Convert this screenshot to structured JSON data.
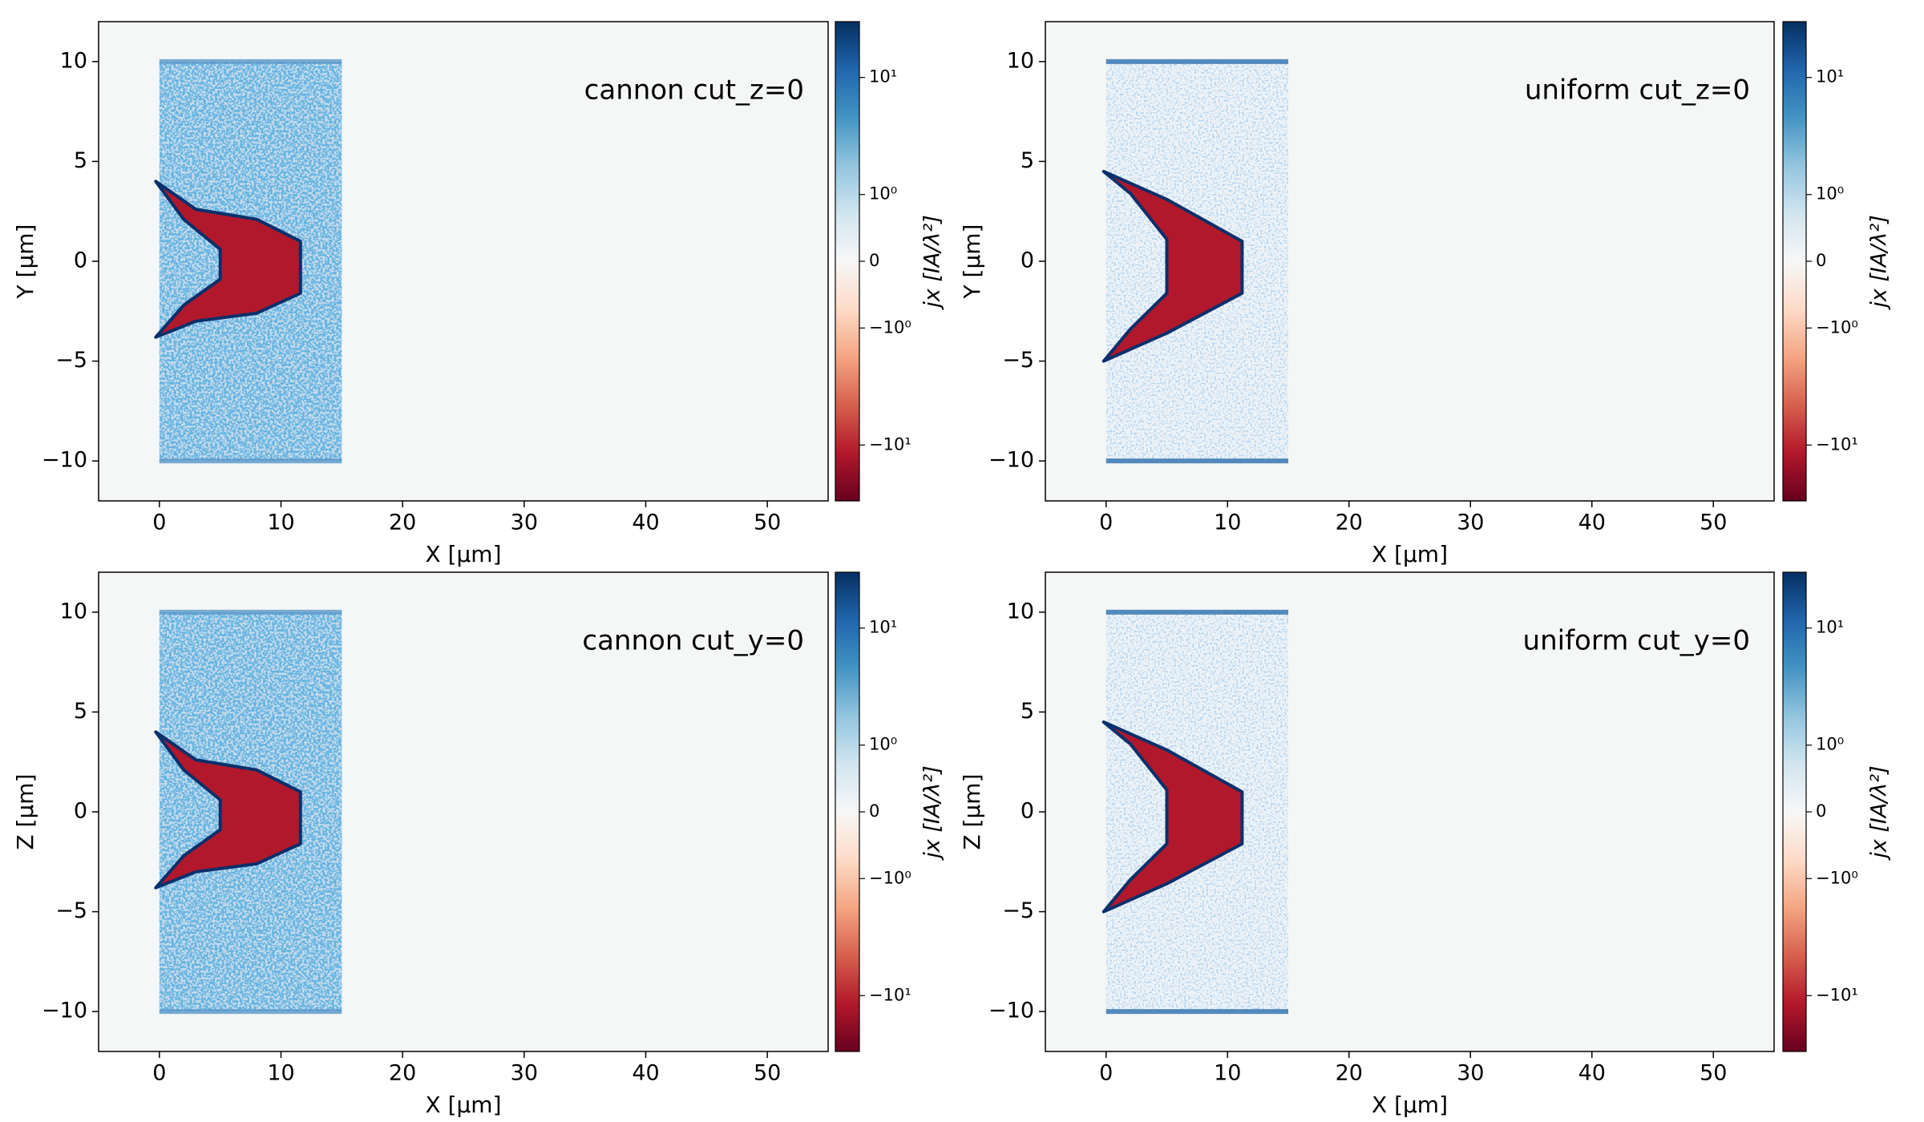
{
  "chart_data": [
    {
      "type": "heatmap",
      "annotation": "cannon cut_z=0",
      "xlabel": "X  [μm]",
      "ylabel": "Y  [μm]",
      "xlim": [
        -5,
        55
      ],
      "xticks": [
        0,
        10,
        20,
        30,
        40,
        50
      ],
      "ylim": [
        -12,
        12
      ],
      "yticks": [
        {
          "value": -10,
          "label": "−10"
        },
        {
          "value": -5,
          "label": "−5"
        },
        0,
        5,
        10
      ],
      "colorbar": {
        "label": "jx  [IA/λ²]",
        "scale": "symlog",
        "linthresh": 1,
        "linscale": 0.57,
        "lim": [
          -30,
          30
        ],
        "ticks": [
          {
            "value": 10,
            "label": "10¹"
          },
          {
            "value": 1,
            "label": "10⁰"
          },
          0,
          {
            "value": -1,
            "label": "−10⁰"
          },
          {
            "value": -10,
            "label": "−10¹"
          }
        ],
        "colors": [
          "#67001f",
          "#b2182b",
          "#d6604d",
          "#f4a582",
          "#fddbc7",
          "#f7f7f7",
          "#d1e5f0",
          "#92c5de",
          "#4393c3",
          "#2166ac",
          "#053061"
        ]
      }
    },
    {
      "type": "heatmap",
      "annotation": "uniform cut_z=0",
      "xlabel": "X  [μm]",
      "ylabel": "Y  [μm]",
      "xlim": [
        -5,
        55
      ],
      "xticks": [
        0,
        10,
        20,
        30,
        40,
        50
      ],
      "ylim": [
        -12,
        12
      ],
      "yticks": [
        {
          "value": -10,
          "label": "−10"
        },
        {
          "value": -5,
          "label": "−5"
        },
        0,
        5,
        10
      ],
      "colorbar": {
        "label": "jx  [IA/λ²]",
        "scale": "symlog",
        "linthresh": 1,
        "linscale": 0.57,
        "lim": [
          -30,
          30
        ],
        "ticks": [
          {
            "value": 10,
            "label": "10¹"
          },
          {
            "value": 1,
            "label": "10⁰"
          },
          0,
          {
            "value": -1,
            "label": "−10⁰"
          },
          {
            "value": -10,
            "label": "−10¹"
          }
        ],
        "colors": [
          "#67001f",
          "#b2182b",
          "#d6604d",
          "#f4a582",
          "#fddbc7",
          "#f7f7f7",
          "#d1e5f0",
          "#92c5de",
          "#4393c3",
          "#2166ac",
          "#053061"
        ]
      }
    },
    {
      "type": "heatmap",
      "annotation": "cannon cut_y=0",
      "xlabel": "X  [μm]",
      "ylabel": "Z  [μm]",
      "xlim": [
        -5,
        55
      ],
      "xticks": [
        0,
        10,
        20,
        30,
        40,
        50
      ],
      "ylim": [
        -12,
        12
      ],
      "yticks": [
        {
          "value": -10,
          "label": "−10"
        },
        {
          "value": -5,
          "label": "−5"
        },
        0,
        5,
        10
      ],
      "colorbar": {
        "label": "jx  [IA/λ²]",
        "scale": "symlog",
        "linthresh": 1,
        "linscale": 0.57,
        "lim": [
          -30,
          30
        ],
        "ticks": [
          {
            "value": 10,
            "label": "10¹"
          },
          {
            "value": 1,
            "label": "10⁰"
          },
          0,
          {
            "value": -1,
            "label": "−10⁰"
          },
          {
            "value": -10,
            "label": "−10¹"
          }
        ],
        "colors": [
          "#67001f",
          "#b2182b",
          "#d6604d",
          "#f4a582",
          "#fddbc7",
          "#f7f7f7",
          "#d1e5f0",
          "#92c5de",
          "#4393c3",
          "#2166ac",
          "#053061"
        ]
      }
    },
    {
      "type": "heatmap",
      "annotation": "uniform cut_y=0",
      "xlabel": "X  [μm]",
      "ylabel": "Z  [μm]",
      "xlim": [
        -5,
        55
      ],
      "xticks": [
        0,
        10,
        20,
        30,
        40,
        50
      ],
      "ylim": [
        -12,
        12
      ],
      "yticks": [
        {
          "value": -10,
          "label": "−10"
        },
        {
          "value": -5,
          "label": "−5"
        },
        0,
        5,
        10
      ],
      "colorbar": {
        "label": "jx  [IA/λ²]",
        "scale": "symlog",
        "linthresh": 1,
        "linscale": 0.57,
        "lim": [
          -30,
          30
        ],
        "ticks": [
          {
            "value": 10,
            "label": "10¹"
          },
          {
            "value": 1,
            "label": "10⁰"
          },
          0,
          {
            "value": -1,
            "label": "−10⁰"
          },
          {
            "value": -10,
            "label": "−10¹"
          }
        ],
        "colors": [
          "#67001f",
          "#b2182b",
          "#d6604d",
          "#f4a582",
          "#fddbc7",
          "#f7f7f7",
          "#d1e5f0",
          "#92c5de",
          "#4393c3",
          "#2166ac",
          "#053061"
        ]
      }
    }
  ]
}
